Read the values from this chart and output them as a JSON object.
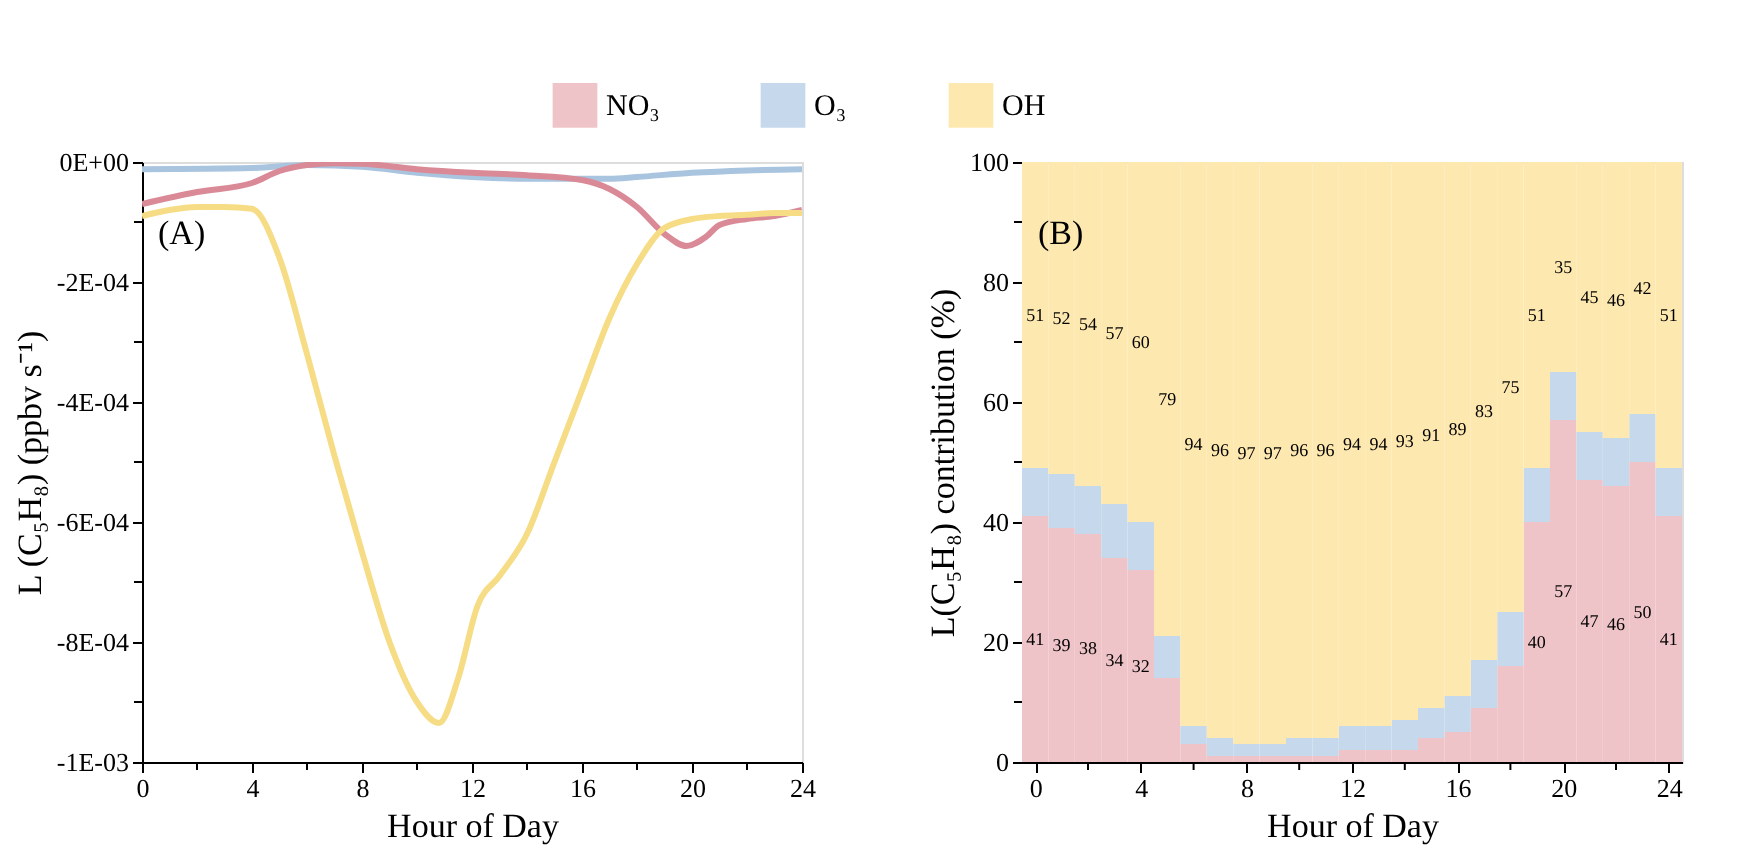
{
  "chart_data": [
    {
      "type": "line",
      "ylabel": "L (C₅H₈) (ppbv s⁻¹)",
      "xlabel": "Hour of Day",
      "annotations": [
        "(A)"
      ],
      "xlim": [
        0,
        24
      ],
      "xticks": [
        0,
        {
          "value": 2,
          "label": null
        },
        4,
        {
          "value": 6,
          "label": null
        },
        8,
        {
          "value": 10,
          "label": null
        },
        12,
        {
          "value": 14,
          "label": null
        },
        16,
        {
          "value": 18,
          "label": null
        },
        20,
        {
          "value": 22,
          "label": null
        },
        24
      ],
      "ylim": [
        -0.001,
        0
      ],
      "yticks": [
        {
          "value": 0,
          "label": "0E+00"
        },
        {
          "value": -0.0001,
          "label": null
        },
        {
          "value": -0.0002,
          "label": "-2E-04"
        },
        {
          "value": -0.0003,
          "label": null
        },
        {
          "value": -0.0004,
          "label": "-4E-04"
        },
        {
          "value": -0.0005,
          "label": null
        },
        {
          "value": -0.0006,
          "label": "-6E-04"
        },
        {
          "value": -0.0007,
          "label": null
        },
        {
          "value": -0.0008,
          "label": "-8E-04"
        },
        {
          "value": -0.0009,
          "label": null
        },
        {
          "value": -0.001,
          "label": "-1E-03"
        }
      ],
      "series": [
        {
          "color": "#a9c4df",
          "x": [
            0,
            4,
            6,
            8,
            10,
            12,
            14,
            16,
            17,
            18,
            20,
            22,
            24
          ],
          "values": [
            -1.2e-05,
            -1e-05,
            -5e-06,
            -8e-06,
            -1.8e-05,
            -2.5e-05,
            -2.8e-05,
            -2.8e-05,
            -2.8e-05,
            -2.5e-05,
            -1.8e-05,
            -1.4e-05,
            -1.2e-05
          ]
        },
        {
          "color": "#d98a96",
          "x": [
            0,
            2,
            4,
            5,
            6,
            7,
            8,
            10,
            12,
            14,
            16,
            17,
            18,
            19,
            19.8,
            20.5,
            21,
            22,
            23,
            24
          ],
          "values": [
            -7e-05,
            -5e-05,
            -3.5e-05,
            -1.5e-05,
            -5e-06,
            -2e-06,
            -3e-06,
            -1.2e-05,
            -1.8e-05,
            -2.2e-05,
            -3e-05,
            -4.5e-05,
            -7.5e-05,
            -0.00012,
            -0.00014,
            -0.000125,
            -0.000105,
            -9.5e-05,
            -9e-05,
            -8e-05
          ]
        },
        {
          "color": "#f6dc84",
          "x": [
            0,
            1,
            2,
            3,
            4,
            5,
            6,
            7,
            8,
            9,
            10,
            10.8,
            11.5,
            12.2,
            13,
            14,
            15,
            16,
            17,
            18,
            19,
            20,
            21,
            22,
            23,
            24
          ],
          "values": [
            -9e-05,
            -8e-05,
            -7.5e-05,
            -7.5e-05,
            -7.8e-05,
            -0.00016,
            -0.00032,
            -0.00049,
            -0.00065,
            -0.0008,
            -0.0009,
            -0.000935,
            -0.00086,
            -0.00074,
            -0.00069,
            -0.00062,
            -0.0005,
            -0.00038,
            -0.00026,
            -0.00017,
            -0.00011,
            -9.5e-05,
            -9e-05,
            -8.8e-05,
            -8.5e-05,
            -8.5e-05
          ]
        }
      ]
    },
    {
      "type": "bar",
      "stacked": true,
      "ylabel": "L(C₅H₈) contribution (%)",
      "xlabel": "Hour of Day",
      "annotations": [
        "(B)"
      ],
      "xlim": [
        -0.5,
        24.5
      ],
      "xticks": [
        0,
        {
          "value": 2,
          "label": null
        },
        4,
        {
          "value": 6,
          "label": null
        },
        8,
        {
          "value": 10,
          "label": null
        },
        12,
        {
          "value": 14,
          "label": null
        },
        16,
        {
          "value": 18,
          "label": null
        },
        20,
        {
          "value": 22,
          "label": null
        },
        24
      ],
      "ylim": [
        0,
        100
      ],
      "yticks": [
        0,
        {
          "value": 10,
          "label": null
        },
        20,
        {
          "value": 30,
          "label": null
        },
        40,
        {
          "value": 50,
          "label": null
        },
        60,
        {
          "value": 70,
          "label": null
        },
        80,
        {
          "value": 90,
          "label": null
        },
        100
      ],
      "legend": "top",
      "x": [
        0,
        1,
        2,
        3,
        4,
        5,
        6,
        7,
        8,
        9,
        10,
        11,
        12,
        13,
        14,
        15,
        16,
        17,
        18,
        19,
        20,
        21,
        22,
        23,
        24
      ],
      "series": [
        {
          "name": "NO₃",
          "color": "#efc4c8",
          "values": [
            41,
            39,
            38,
            34,
            32,
            14,
            3,
            1,
            1,
            1,
            1,
            1,
            2,
            2,
            2,
            4,
            5,
            9,
            16,
            40,
            57,
            47,
            46,
            50,
            41
          ],
          "value_labels": [
            "41",
            "39",
            "38",
            "34",
            "32",
            null,
            null,
            null,
            null,
            null,
            null,
            null,
            null,
            null,
            null,
            null,
            null,
            null,
            null,
            "40",
            "57",
            "47",
            "46",
            "50",
            "41"
          ]
        },
        {
          "name": "O₃",
          "color": "#c6d9ec",
          "values": [
            8,
            9,
            8,
            9,
            8,
            7,
            3,
            3,
            2,
            2,
            3,
            3,
            4,
            4,
            5,
            5,
            6,
            8,
            9,
            9,
            8,
            8,
            8,
            8,
            8
          ]
        },
        {
          "name": "OH",
          "color": "#fde8b0",
          "values": [
            51,
            52,
            54,
            57,
            60,
            79,
            94,
            96,
            97,
            97,
            96,
            96,
            94,
            94,
            93,
            91,
            89,
            83,
            75,
            51,
            35,
            45,
            46,
            42,
            51
          ],
          "value_labels": [
            "51",
            "52",
            "54",
            "57",
            "60",
            "79",
            "94",
            "96",
            "97",
            "97",
            "96",
            "96",
            "94",
            "94",
            "93",
            "91",
            "89",
            "83",
            "75",
            "51",
            "35",
            "45",
            "46",
            "42",
            "51"
          ]
        }
      ]
    }
  ]
}
